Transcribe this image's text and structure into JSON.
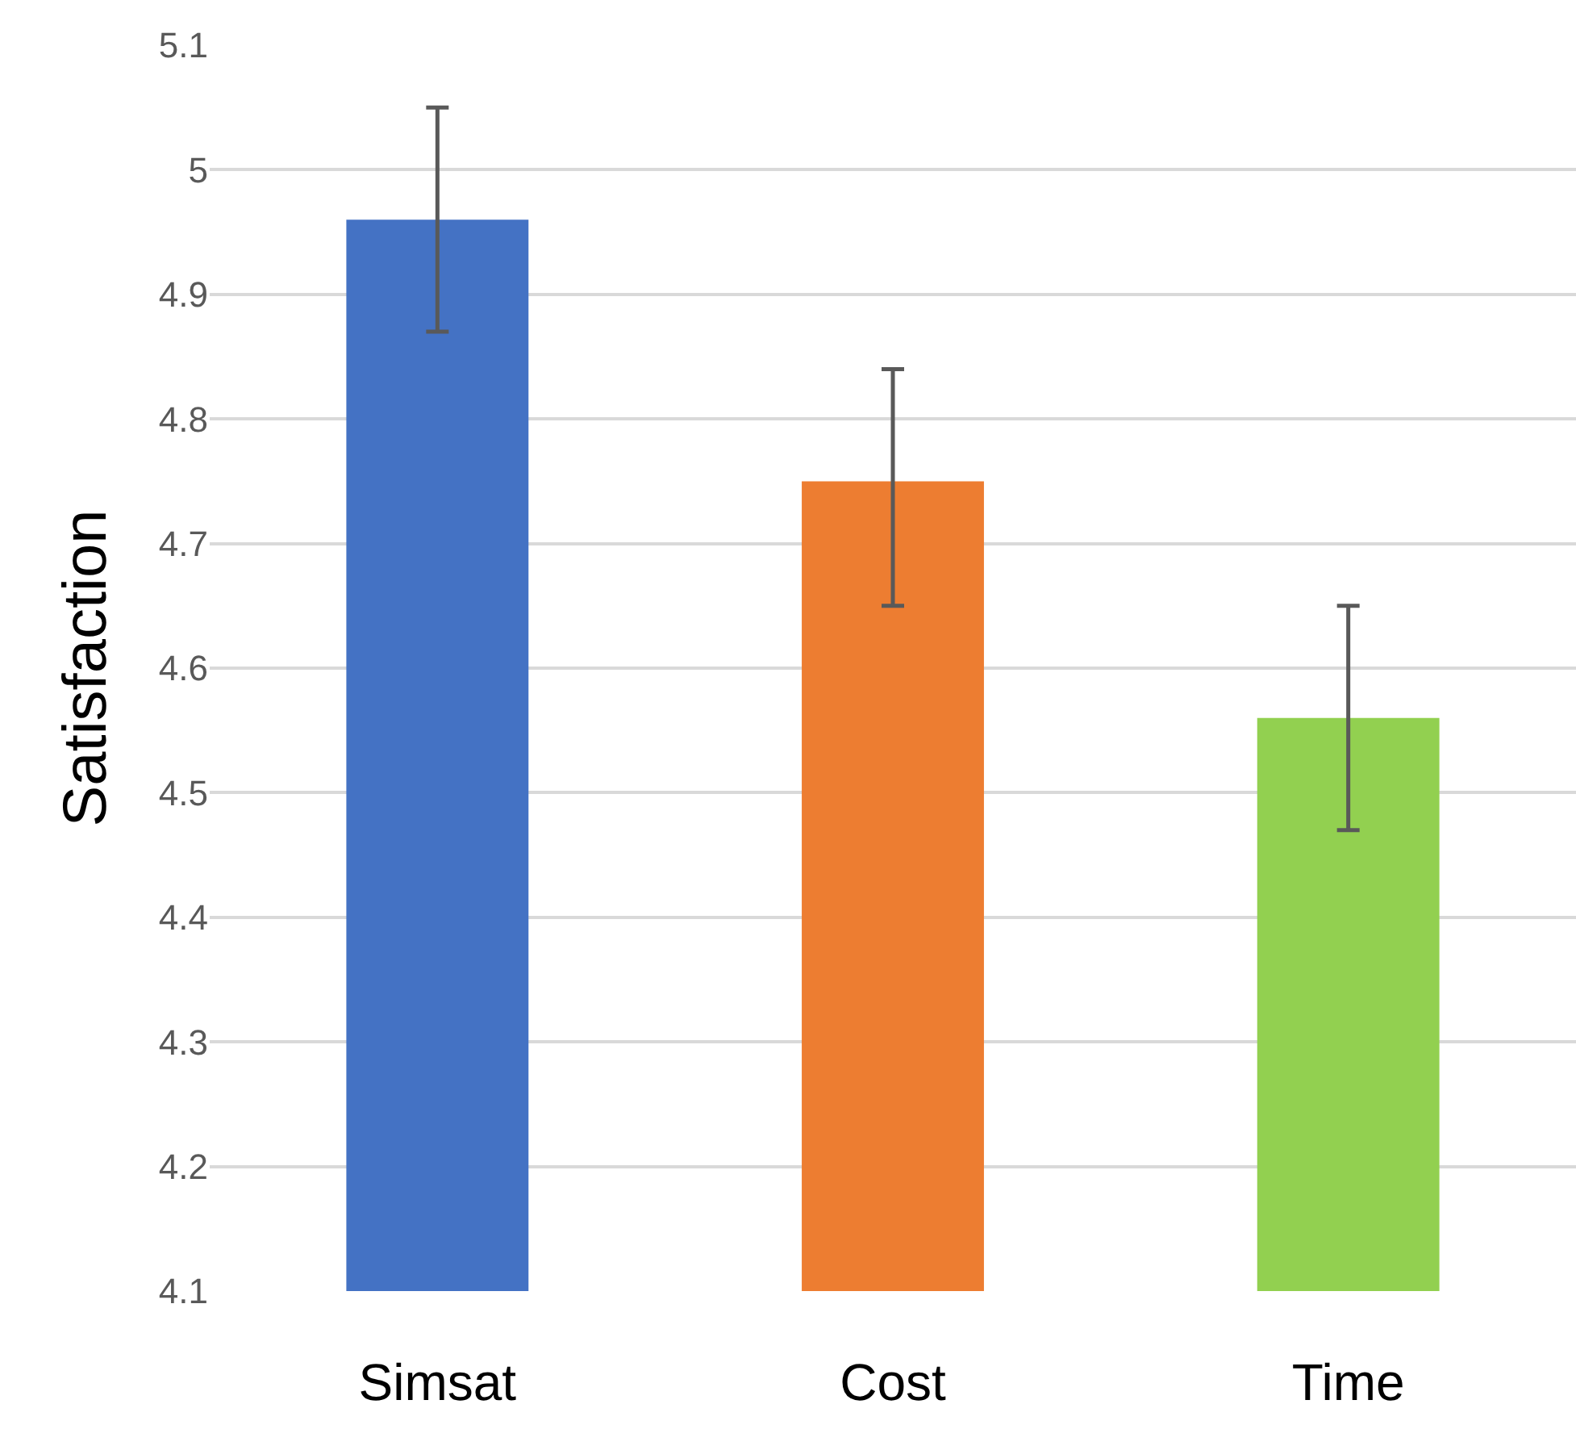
{
  "chart_data": {
    "type": "bar",
    "ylabel": "Satisfaction",
    "categories": [
      "Simsat",
      "Cost",
      "Time"
    ],
    "values": [
      4.96,
      4.75,
      4.56
    ],
    "colors": [
      "#4472c4",
      "#ed7d31",
      "#92d050"
    ],
    "errors": [
      [
        4.87,
        5.05
      ],
      [
        4.65,
        4.84
      ],
      [
        4.47,
        4.65
      ]
    ],
    "ylim": [
      4.1,
      5.1
    ],
    "yticks": [
      4.1,
      4.2,
      4.3,
      4.4,
      4.5,
      4.6,
      4.7,
      4.8,
      4.9,
      5,
      5.1
    ],
    "grid": "y"
  }
}
